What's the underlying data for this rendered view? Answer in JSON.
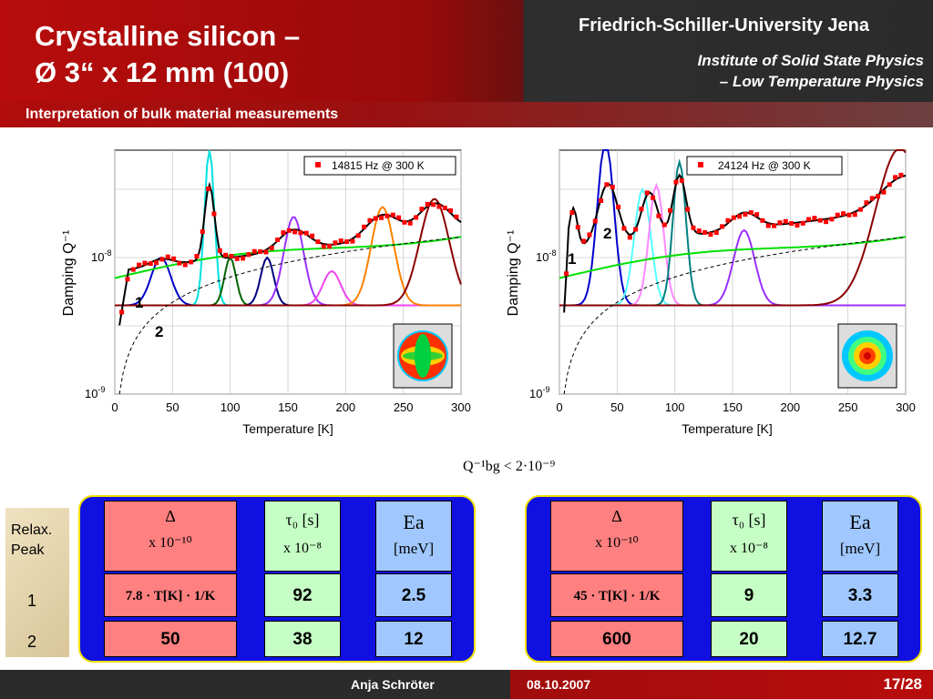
{
  "header": {
    "title_line1": "Crystalline silicon –",
    "title_line2": "Ø 3“ x 12 mm (100)",
    "university": "Friedrich-Schiller-University Jena",
    "institute_line1": "Institute of Solid State Physics",
    "institute_line2": "– Low Temperature Physics",
    "subtitle": "Interpretation of bulk material measurements"
  },
  "footer": {
    "author": "Anja Schröter",
    "date": "08.10.2007",
    "page": "17/28"
  },
  "background_note": "Q⁻¹bg < 2·10⁻⁹",
  "colors": {
    "header_red": "#b80c0c",
    "header_dark": "#2b2b2b",
    "table_blue": "#1010e0",
    "table_border": "#f0e000",
    "cell_red": "#ff8080",
    "cell_green": "#c6ffc6",
    "cell_blue": "#a0c8ff"
  },
  "relax_panel": {
    "label_line1": "Relax.",
    "label_line2": "Peak",
    "peak1": "1",
    "peak2": "2"
  },
  "tables": [
    {
      "col1_header": "Δ",
      "col1_unit": "x 10⁻¹⁰",
      "col1_formula": "7.8 · T[K] · 1/K",
      "col2_header": "τ₀ [s]",
      "col2_unit": "x 10⁻⁸",
      "col3_header": "Ea",
      "col3_unit": "[meV]",
      "row1": [
        "",
        "92",
        "2.5"
      ],
      "row2": [
        "50",
        "38",
        "12"
      ]
    },
    {
      "col1_header": "Δ",
      "col1_unit": "x 10⁻¹⁰",
      "col1_formula": "45 · T[K] · 1/K",
      "col2_header": "τ₀ [s]",
      "col2_unit": "x 10⁻⁸",
      "col3_header": "Ea",
      "col3_unit": "[meV]",
      "row1": [
        "",
        "9",
        "3.3"
      ],
      "row2": [
        "600",
        "20",
        "12.7"
      ]
    }
  ],
  "chart_data": [
    {
      "type": "line",
      "legend": "14815 Hz @ 300 K",
      "xlabel": "Temperature [K]",
      "ylabel": "Damping Q⁻¹",
      "xlim": [
        0,
        300
      ],
      "ylog": true,
      "x_ticks": [
        "0",
        "50",
        "100",
        "150",
        "200",
        "250",
        "300"
      ],
      "y_ticks": [
        "10⁻⁹",
        "10⁻⁸"
      ],
      "annotations": [
        "1",
        "2"
      ],
      "grid": true,
      "legend_position": "top-right",
      "series_colors": [
        "#000000",
        "#ff0000",
        "#00e000",
        "#0000cc",
        "#00e0e0",
        "#006400",
        "#000080",
        "#9b30ff",
        "#ee44ee",
        "#ff8000",
        "#8b0000"
      ]
    },
    {
      "type": "line",
      "legend": "24124 Hz @ 300 K",
      "xlabel": "Temperature [K]",
      "ylabel": "Damping Q⁻¹",
      "xlim": [
        0,
        300
      ],
      "ylog": true,
      "x_ticks": [
        "0",
        "50",
        "100",
        "150",
        "200",
        "250",
        "300"
      ],
      "y_ticks": [
        "10⁻⁹",
        "10⁻⁸"
      ],
      "annotations": [
        "2",
        "1"
      ],
      "grid": true,
      "legend_position": "top-right",
      "series_colors": [
        "#000000",
        "#ff0000",
        "#00e000",
        "#0000cc",
        "#55ffff",
        "#ff88ff",
        "#008080",
        "#9b30ff",
        "#8b0000"
      ]
    }
  ]
}
